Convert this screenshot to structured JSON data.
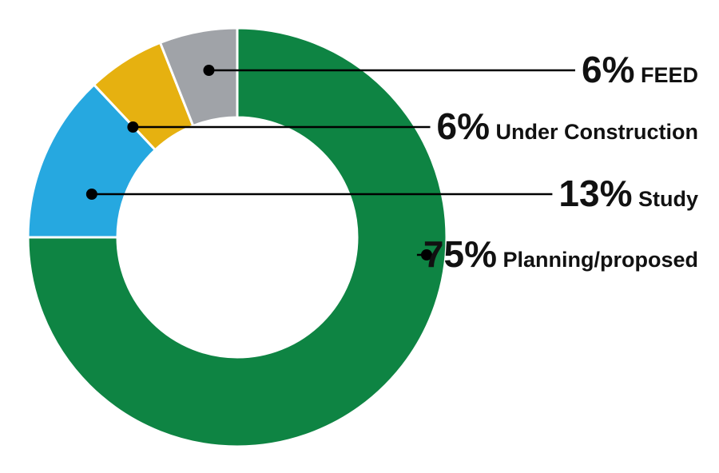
{
  "chart_data": {
    "type": "pie",
    "style": "donut",
    "start": "12 o'clock",
    "direction": "clockwise",
    "slices": [
      {
        "label": "Planning/proposed",
        "value": 75,
        "value_text": "75%",
        "color": "#0e8443"
      },
      {
        "label": "Study",
        "value": 13,
        "value_text": "13%",
        "color": "#26a8e0"
      },
      {
        "label": "Under Construction",
        "value": 6,
        "value_text": "6%",
        "color": "#e6b110"
      },
      {
        "label": "FEED",
        "value": 6,
        "value_text": "6%",
        "color": "#a0a3a8"
      }
    ],
    "legend": "right",
    "separator_color": "#ffffff",
    "leader_color": "#000000"
  }
}
